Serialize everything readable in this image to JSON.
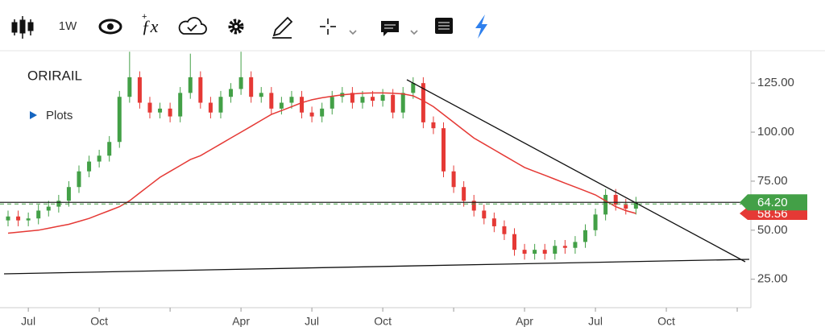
{
  "toolbar": {
    "interval": "1W"
  },
  "chart_data": {
    "type": "candlestick",
    "title": "ORIRAIL",
    "plots_label": "Plots",
    "categories": [
      null,
      null,
      "Jul",
      null,
      null,
      null,
      null,
      null,
      null,
      "Oct",
      null,
      null,
      null,
      null,
      null,
      null,
      null,
      null,
      null,
      null,
      null,
      null,
      null,
      "Apr",
      null,
      null,
      null,
      null,
      null,
      null,
      "Jul",
      null,
      null,
      null,
      null,
      null,
      null,
      "Oct",
      null,
      null,
      null,
      null,
      null,
      null,
      null,
      null,
      null,
      null,
      null,
      null,
      null,
      "Apr",
      null,
      null,
      null,
      null,
      null,
      null,
      "Jul",
      null,
      null,
      null,
      null,
      null,
      null,
      "Oct",
      null,
      null,
      null,
      null,
      null,
      null,
      null
    ],
    "open": [
      55,
      57,
      55,
      56,
      60,
      62,
      65,
      72,
      80,
      85,
      88,
      95,
      118,
      128,
      115,
      110,
      112,
      108,
      120,
      128,
      115,
      110,
      118,
      122,
      128,
      118,
      120,
      112,
      115,
      118,
      110,
      108,
      112,
      118,
      120,
      115,
      118,
      116,
      119,
      110,
      120,
      125,
      105,
      102,
      80,
      72,
      65,
      60,
      56,
      52,
      48,
      40,
      38,
      40,
      38,
      42,
      41,
      44,
      50,
      58,
      68,
      63,
      61,
      null,
      null,
      null,
      null,
      null,
      null,
      null,
      null,
      null,
      null
    ],
    "high": [
      60,
      60,
      59,
      63,
      65,
      68,
      75,
      83,
      88,
      91,
      98,
      121,
      141,
      131,
      118,
      115,
      115,
      123,
      140,
      131,
      118,
      121,
      125,
      141,
      131,
      123,
      123,
      118,
      121,
      121,
      113,
      115,
      121,
      123,
      123,
      121,
      121,
      122,
      122,
      123,
      128,
      128,
      108,
      105,
      83,
      75,
      68,
      63,
      59,
      55,
      51,
      43,
      43,
      43,
      45,
      45,
      47,
      53,
      61,
      71,
      71,
      66,
      67,
      null,
      null,
      null,
      null,
      null,
      null,
      null,
      null,
      null,
      null
    ],
    "low": [
      52,
      52,
      52,
      53,
      57,
      59,
      62,
      69,
      77,
      82,
      85,
      92,
      115,
      112,
      107,
      107,
      105,
      105,
      117,
      112,
      107,
      107,
      115,
      119,
      115,
      115,
      109,
      109,
      112,
      107,
      105,
      105,
      109,
      115,
      112,
      112,
      113,
      113,
      107,
      107,
      117,
      102,
      99,
      77,
      69,
      62,
      57,
      53,
      49,
      45,
      37,
      35,
      35,
      35,
      35,
      38,
      38,
      41,
      47,
      55,
      60,
      58,
      58,
      null,
      null,
      null,
      null,
      null,
      null,
      null,
      null,
      null,
      null
    ],
    "close": [
      57,
      55,
      56,
      60,
      62,
      65,
      72,
      80,
      85,
      88,
      95,
      118,
      128,
      115,
      110,
      112,
      108,
      120,
      128,
      115,
      110,
      118,
      122,
      128,
      118,
      120,
      112,
      115,
      118,
      110,
      108,
      112,
      118,
      120,
      115,
      118,
      116,
      119,
      110,
      120,
      125,
      105,
      102,
      80,
      72,
      65,
      60,
      56,
      52,
      48,
      40,
      38,
      40,
      38,
      42,
      41,
      44,
      50,
      58,
      68,
      63,
      61,
      64.2,
      null,
      null,
      null,
      null,
      null,
      null,
      null,
      null,
      null,
      null
    ],
    "moving_average": [
      48.5,
      49,
      49.5,
      50,
      51,
      52,
      53,
      54.5,
      56,
      58,
      60,
      62,
      65,
      69,
      73,
      77,
      80,
      83,
      86,
      88,
      91,
      94,
      97,
      100,
      103,
      106,
      109,
      111,
      113,
      115,
      116.5,
      117.5,
      118.3,
      119,
      119.5,
      119.8,
      120,
      120,
      119.8,
      119.5,
      118.5,
      116,
      113,
      109,
      105,
      101,
      97,
      94,
      91,
      88,
      85,
      82,
      80,
      78,
      76,
      74,
      72,
      70,
      68,
      65,
      62,
      60,
      58.56,
      null,
      null,
      null,
      null,
      null,
      null,
      null,
      null,
      null,
      null
    ],
    "up_color": "#43a047",
    "down_color": "#e53935",
    "ma_color": "#e53935",
    "last_price": {
      "value": 64.2,
      "label": "64.20"
    },
    "ma_last": {
      "value": 58.56,
      "label": "58.56"
    },
    "ylim": [
      10.5,
      141.5
    ],
    "yticks": [
      {
        "value": 25,
        "label": "25.00"
      },
      {
        "value": 50,
        "label": "50.00"
      },
      {
        "value": 75,
        "label": "75.00"
      },
      {
        "value": 100,
        "label": "100.00"
      },
      {
        "value": 125,
        "label": "125.00"
      }
    ]
  }
}
